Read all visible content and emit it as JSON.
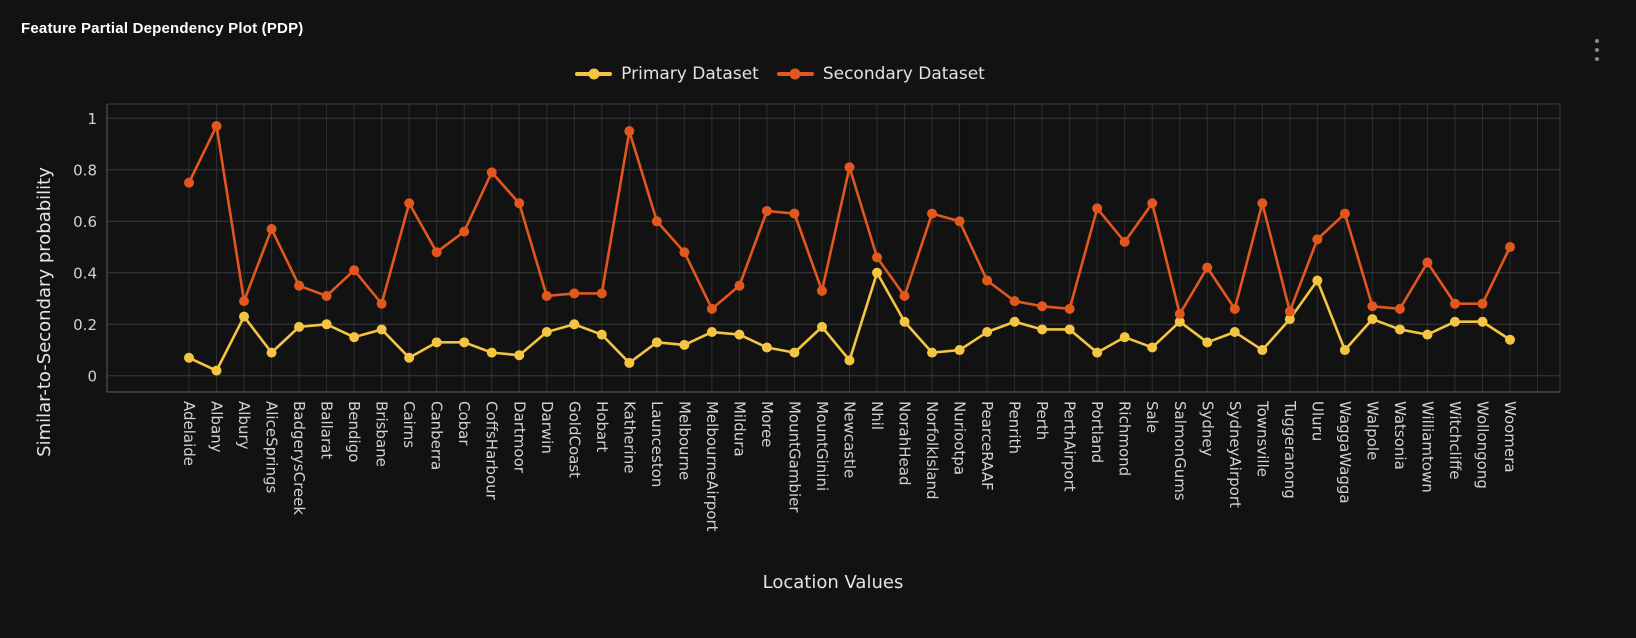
{
  "header": {
    "title": "Feature Partial Dependency Plot (PDP)"
  },
  "menu": {
    "icon": "kebab-vertical-icon"
  },
  "colors": {
    "background": "#121212",
    "grid_line": "#3a3a3a",
    "grid_line_vertical": "#2e2e2e",
    "axis_line": "#5f5f5f",
    "tick_label": "#d2d2d2",
    "axis_title": "#e4e4e4",
    "legend_label": "#e2e2e2",
    "title": "#ffffff",
    "menu_icon": "#8a8a8a",
    "primary": "#f4c542",
    "secondary": "#e2571e"
  },
  "chart_data": {
    "type": "line",
    "title": "Feature Partial Dependency Plot (PDP)",
    "xlabel": "Location Values",
    "ylabel": "Similar-to-Secondary probability",
    "ylim": [
      0,
      1
    ],
    "yticks": [
      "0",
      "0.2",
      "0.4",
      "0.6",
      "0.8",
      "1"
    ],
    "grid": true,
    "legend_position": "top-center",
    "marker": "circle",
    "categories": [
      "Adelaide",
      "Albany",
      "Albury",
      "AliceSprings",
      "BadgerysCreek",
      "Ballarat",
      "Bendigo",
      "Brisbane",
      "Cairns",
      "Canberra",
      "Cobar",
      "CoffsHarbour",
      "Dartmoor",
      "Darwin",
      "GoldCoast",
      "Hobart",
      "Katherine",
      "Launceston",
      "Melbourne",
      "MelbourneAirport",
      "Mildura",
      "Moree",
      "MountGambier",
      "MountGinini",
      "Newcastle",
      "Nhil",
      "NorahHead",
      "NorfolkIsland",
      "Nuriootpa",
      "PearceRAAF",
      "Penrith",
      "Perth",
      "PerthAirport",
      "Portland",
      "Richmond",
      "Sale",
      "SalmonGums",
      "Sydney",
      "SydneyAirport",
      "Townsville",
      "Tuggeranong",
      "Uluru",
      "WaggaWagga",
      "Walpole",
      "Watsonia",
      "Williamtown",
      "Witchcliffe",
      "Wollongong",
      "Woomera"
    ],
    "series": [
      {
        "name": "Primary Dataset",
        "color": "#f4c542",
        "values": [
          0.07,
          0.02,
          0.23,
          0.09,
          0.19,
          0.2,
          0.15,
          0.18,
          0.07,
          0.13,
          0.13,
          0.09,
          0.08,
          0.17,
          0.2,
          0.16,
          0.05,
          0.13,
          0.12,
          0.17,
          0.16,
          0.11,
          0.09,
          0.19,
          0.06,
          0.4,
          0.21,
          0.09,
          0.1,
          0.17,
          0.21,
          0.18,
          0.18,
          0.09,
          0.15,
          0.11,
          0.21,
          0.13,
          0.17,
          0.1,
          0.22,
          0.37,
          0.1,
          0.22,
          0.18,
          0.16,
          0.21,
          0.21,
          0.14
        ]
      },
      {
        "name": "Secondary Dataset",
        "color": "#e2571e",
        "values": [
          0.75,
          0.97,
          0.29,
          0.57,
          0.35,
          0.31,
          0.41,
          0.28,
          0.67,
          0.48,
          0.56,
          0.79,
          0.67,
          0.31,
          0.32,
          0.32,
          0.95,
          0.6,
          0.48,
          0.26,
          0.35,
          0.64,
          0.63,
          0.33,
          0.81,
          0.46,
          0.31,
          0.63,
          0.6,
          0.37,
          0.29,
          0.27,
          0.26,
          0.65,
          0.52,
          0.67,
          0.24,
          0.42,
          0.26,
          0.67,
          0.25,
          0.53,
          0.63,
          0.27,
          0.26,
          0.44,
          0.28,
          0.28,
          0.5
        ]
      }
    ]
  }
}
